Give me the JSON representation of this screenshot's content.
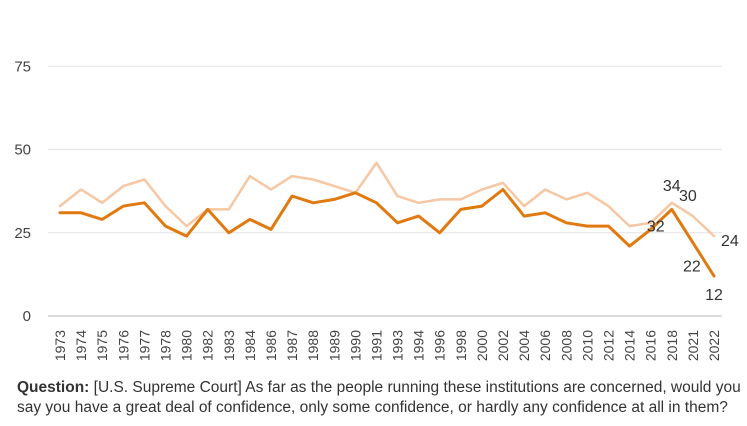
{
  "chart_data": {
    "type": "line",
    "categories": [
      "1973",
      "1974",
      "1975",
      "1976",
      "1977",
      "1978",
      "1980",
      "1982",
      "1983",
      "1984",
      "1986",
      "1987",
      "1988",
      "1989",
      "1990",
      "1991",
      "1993",
      "1994",
      "1996",
      "1998",
      "2000",
      "2002",
      "2004",
      "2006",
      "2008",
      "2010",
      "2012",
      "2014",
      "2016",
      "2018",
      "2021",
      "2022"
    ],
    "series": [
      {
        "color": "#f7c7a3",
        "values": [
          33,
          38,
          34,
          39,
          41,
          33,
          27,
          32,
          32,
          42,
          38,
          42,
          41,
          39,
          37,
          46,
          36,
          34,
          35,
          35,
          38,
          40,
          33,
          38,
          35,
          37,
          33,
          27,
          28,
          34,
          30,
          24
        ]
      },
      {
        "color": "#e07a0f",
        "values": [
          31,
          31,
          29,
          33,
          34,
          27,
          24,
          32,
          25,
          29,
          26,
          36,
          34,
          35,
          37,
          34,
          28,
          30,
          25,
          32,
          33,
          38,
          30,
          31,
          28,
          27,
          27,
          21,
          26,
          32,
          22,
          12
        ]
      }
    ],
    "y_ticks": [
      "0",
      "25",
      "50",
      "75"
    ],
    "ylim": [
      0,
      85
    ],
    "grid": true,
    "data_labels": [
      {
        "text": "34",
        "series": 0,
        "index": 29
      },
      {
        "text": "30",
        "series": 0,
        "index": 30
      },
      {
        "text": "24",
        "series": 0,
        "index": 31
      },
      {
        "text": "32",
        "series": 1,
        "index": 29
      },
      {
        "text": "22",
        "series": 1,
        "index": 30
      },
      {
        "text": "12",
        "series": 1,
        "index": 31
      }
    ]
  },
  "question": {
    "label": "Question:",
    "text": "[U.S. Supreme Court] As far as the people running these institutions are concerned, would you say you have a great deal of confidence, only some confidence, or hardly any confidence at all in them?"
  }
}
